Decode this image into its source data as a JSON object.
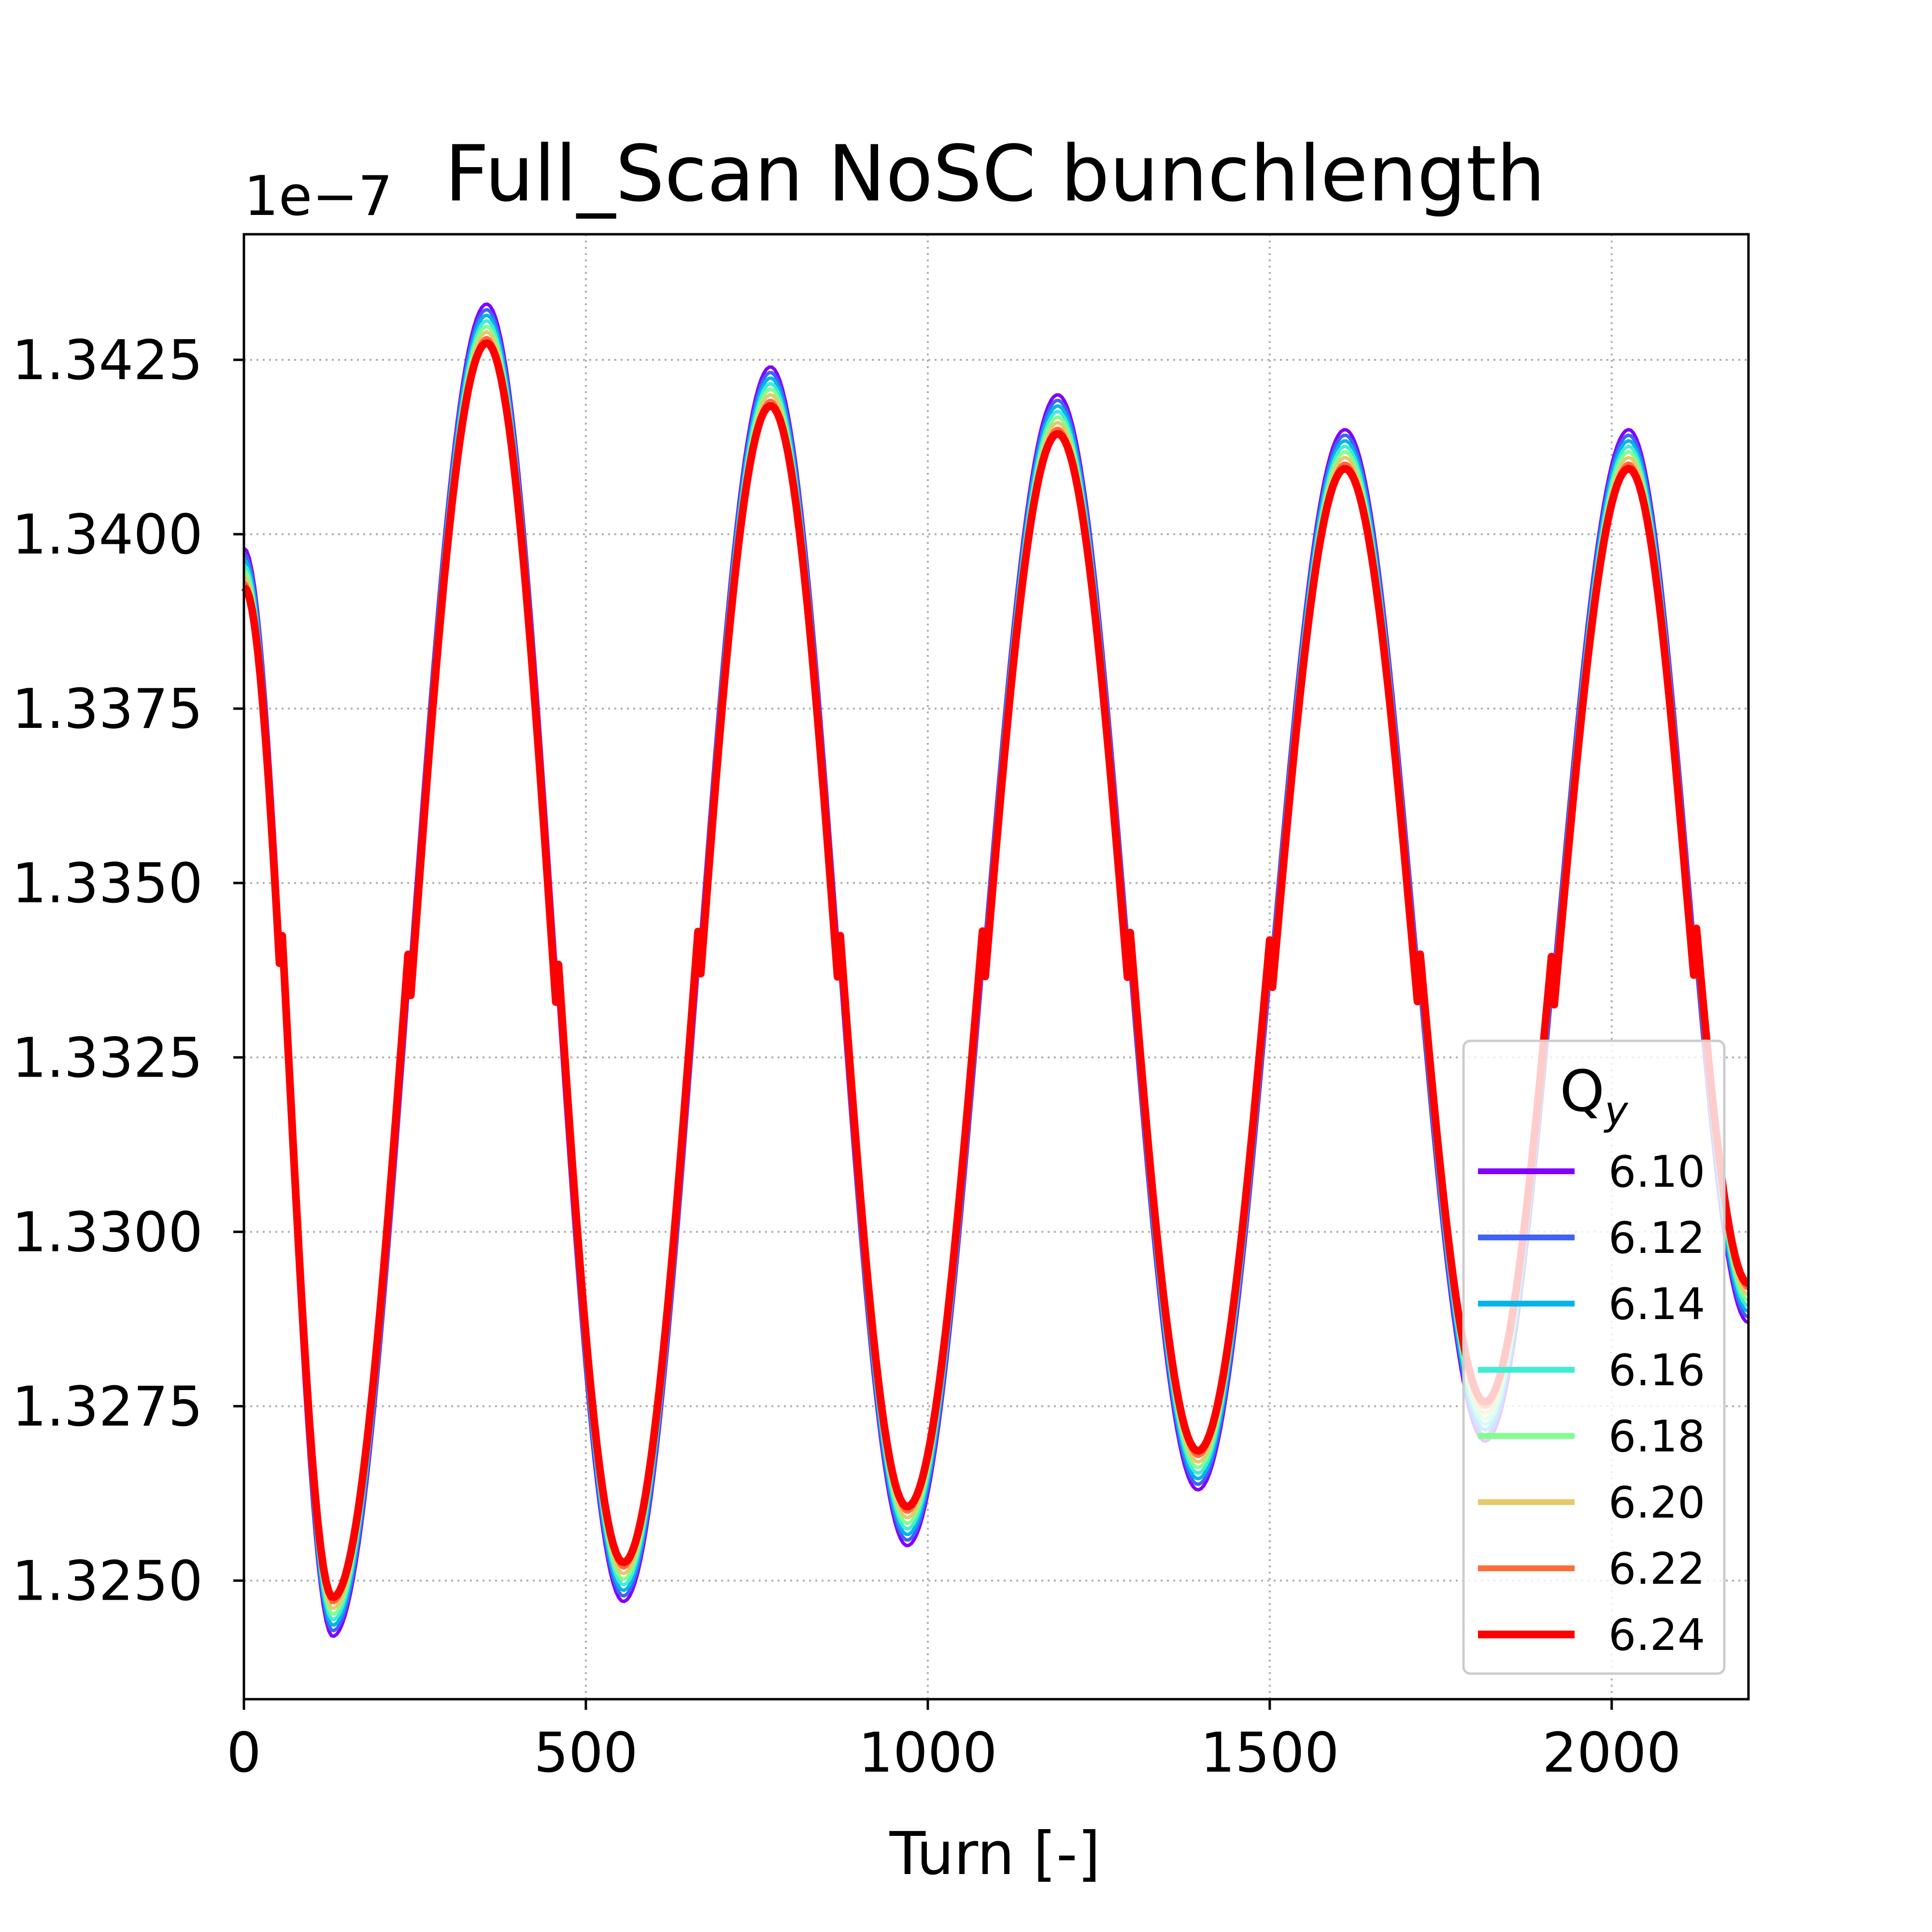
{
  "chart_data": {
    "type": "line",
    "title": "Full_Scan NoSC bunchlength",
    "xlabel": "Turn [-]",
    "ylabel": "",
    "offset_text": "1e−7",
    "xlim": [
      0,
      2200
    ],
    "ylim": [
      1.3233,
      1.3443
    ],
    "xticks": [
      0,
      500,
      1000,
      1500,
      2000
    ],
    "yticks": [
      1.325,
      1.3275,
      1.33,
      1.3325,
      1.335,
      1.3375,
      1.34,
      1.3425
    ],
    "ytick_labels": [
      "1.3250",
      "1.3275",
      "1.3300",
      "1.3325",
      "1.3350",
      "1.3375",
      "1.3400",
      "1.3425"
    ],
    "grid": true,
    "legend": {
      "title": "Q",
      "title_sub": "y",
      "placement": "lower-right"
    },
    "series": [
      {
        "name": "6.10",
        "color": "#8000ff"
      },
      {
        "name": "6.12",
        "color": "#4062fa"
      },
      {
        "name": "6.14",
        "color": "#00b5eb"
      },
      {
        "name": "6.16",
        "color": "#40ecd4"
      },
      {
        "name": "6.18",
        "color": "#80ff8c"
      },
      {
        "name": "6.20",
        "color": "#e6c96b"
      },
      {
        "name": "6.22",
        "color": "#ff6d38"
      },
      {
        "name": "6.24",
        "color": "#ff0000"
      }
    ],
    "key_points": {
      "x": [
        0,
        130,
        355,
        555,
        770,
        970,
        1190,
        1395,
        1610,
        1815,
        2025,
        2200
      ],
      "y": [
        1.3398,
        1.3242,
        1.3433,
        1.3247,
        1.3424,
        1.3255,
        1.342,
        1.3263,
        1.3415,
        1.327,
        1.3415,
        1.3287
      ],
      "note_series_offset": [
        0.0,
        8e-05,
        0.00016,
        0.00024,
        0.00032,
        0.0004,
        0.00048,
        0.00056
      ]
    }
  }
}
